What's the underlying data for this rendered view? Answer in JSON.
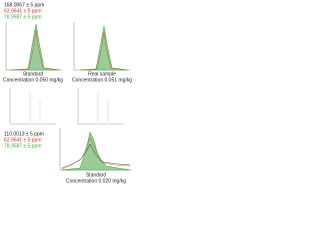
{
  "top": {
    "mz": [
      "168.0067 ± 5 ppm",
      "62.9641 ± 5 ppm",
      "78.9587 ± 5 ppm"
    ],
    "panels": [
      {
        "label": "Standard",
        "concentration": "Concentration 0.050 mg/kg"
      },
      {
        "label": "Real sample",
        "concentration": "Concentration 0.051 mg/kg"
      }
    ]
  },
  "bottom": {
    "mz": [
      "110.0013 ± 5 ppm",
      "62.9641 ± 5 ppm",
      "78.9587 ± 5 ppm"
    ],
    "panel": {
      "label": "Standard",
      "concentration": "Concentration 0.020 mg/kg"
    }
  }
}
